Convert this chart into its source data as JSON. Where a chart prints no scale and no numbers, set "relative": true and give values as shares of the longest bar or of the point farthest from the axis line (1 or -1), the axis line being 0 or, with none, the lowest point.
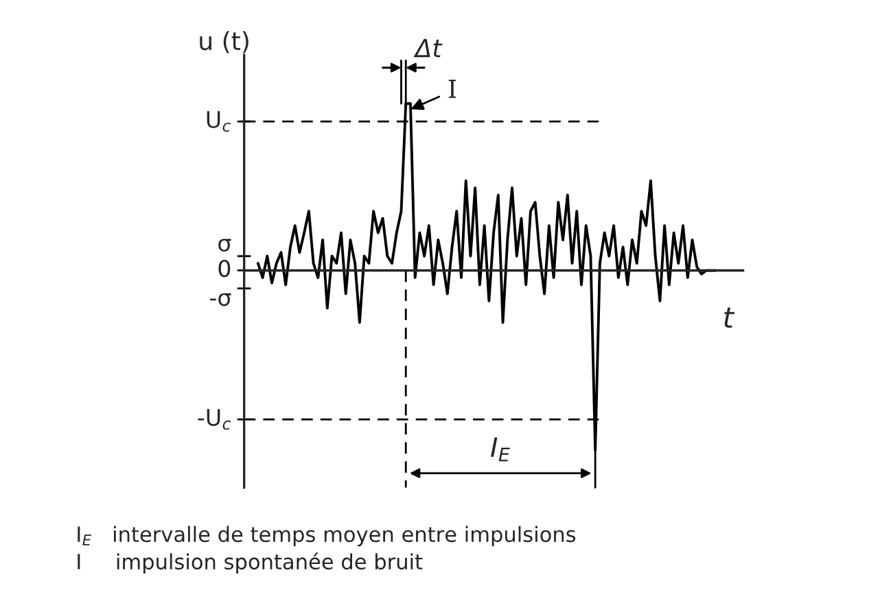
{
  "chart_data": {
    "type": "line",
    "xlabel": "t",
    "ylabel": "u (t)",
    "relative": true,
    "categories": [
      null,
      null,
      null,
      null,
      null,
      null,
      null,
      null,
      null,
      null,
      null,
      null,
      null,
      null,
      null,
      null,
      null,
      null,
      null,
      null,
      null,
      null,
      null,
      null,
      null,
      null,
      null,
      null,
      null,
      null,
      null,
      null,
      null,
      null,
      null,
      null,
      null,
      null,
      null,
      null,
      null,
      null,
      null,
      null,
      null,
      null,
      null,
      null,
      null,
      null,
      null,
      null,
      null,
      null,
      null,
      null,
      null,
      null,
      null,
      null,
      null,
      null,
      null,
      null,
      null,
      null,
      null,
      null,
      null,
      null,
      null,
      null,
      null,
      null,
      null,
      null,
      null,
      null,
      null,
      null,
      null,
      null,
      null,
      null,
      null,
      null,
      null,
      null,
      null,
      null,
      null,
      null,
      null,
      null,
      null,
      null,
      null,
      null,
      null,
      null
    ],
    "values": [
      0.04,
      -0.04,
      0.08,
      -0.07,
      0.04,
      0.1,
      -0.08,
      0.13,
      0.25,
      0.1,
      0.21,
      0.33,
      0.04,
      -0.04,
      0.17,
      -0.21,
      0.08,
      0.04,
      0.21,
      -0.13,
      0.17,
      0.04,
      -0.29,
      0.08,
      0.04,
      0.33,
      0.21,
      0.29,
      0.08,
      0.04,
      0.21,
      0.33,
      0.93,
      0.93,
      -0.04,
      0.21,
      0.08,
      0.25,
      -0.08,
      0.17,
      0.04,
      -0.13,
      0.13,
      0.33,
      -0.04,
      0.5,
      0.08,
      0.46,
      -0.08,
      0.25,
      -0.17,
      0.21,
      0.42,
      -0.29,
      0.17,
      0.46,
      0.08,
      0.29,
      -0.08,
      0.33,
      0.38,
      0.08,
      -0.13,
      0.25,
      -0.04,
      0.38,
      0.17,
      0.42,
      0.04,
      0.33,
      -0.08,
      0.25,
      0.08,
      -1,
      0.04,
      0.21,
      0.08,
      0.25,
      -0.04,
      0.13,
      -0.08,
      0.17,
      0.04,
      0.33,
      0.25,
      0.5,
      0.08,
      -0.17,
      0.25,
      -0.08,
      0.21,
      0.04,
      0.25,
      -0.04,
      0.17,
      0.02,
      -0.02,
      0,
      0,
      0
    ],
    "color": "#000000",
    "ref_lines": [
      {
        "axis": "y",
        "value": 0.83,
        "label": "U$_{c}$",
        "line_style": "dashed",
        "color": "#000000"
      },
      {
        "axis": "y",
        "value": 0.08,
        "label": "σ"
      },
      {
        "axis": "y",
        "value": 0,
        "label": "0"
      },
      {
        "axis": "y",
        "value": -0.1,
        "label": "-σ"
      },
      {
        "axis": "y",
        "value": -0.83,
        "label": "-U$_{c}$",
        "line_style": "dashed",
        "color": "#000000"
      }
    ],
    "annotations": [
      "Δt",
      "I",
      "I$_{E}$",
      "I$_{E}$   intervalle de temps moyen entre impulsions",
      "I     impulsion spontanée de bruit"
    ]
  }
}
